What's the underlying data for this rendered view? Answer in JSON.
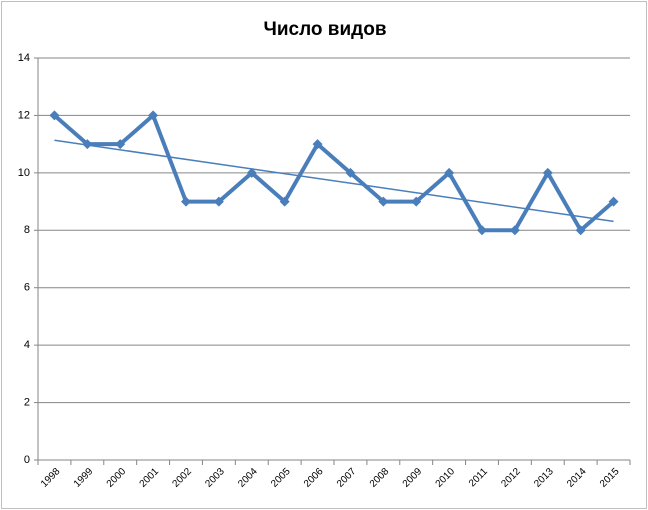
{
  "chart_data": {
    "type": "line",
    "title": "Число видов",
    "categories": [
      "1998",
      "1999",
      "2000",
      "2001",
      "2002",
      "2003",
      "2004",
      "2005",
      "2006",
      "2007",
      "2008",
      "2009",
      "2010",
      "2011",
      "2012",
      "2013",
      "2014",
      "2015"
    ],
    "values": [
      12,
      11,
      11,
      12,
      9,
      9,
      10,
      9,
      11,
      10,
      9,
      9,
      10,
      8,
      8,
      10,
      8,
      9
    ],
    "color": "#4a7ebb",
    "ylim": [
      0,
      14
    ],
    "yticks": [
      0,
      2,
      4,
      6,
      8,
      10,
      12,
      14
    ],
    "grid": true,
    "trendline": "linear"
  }
}
